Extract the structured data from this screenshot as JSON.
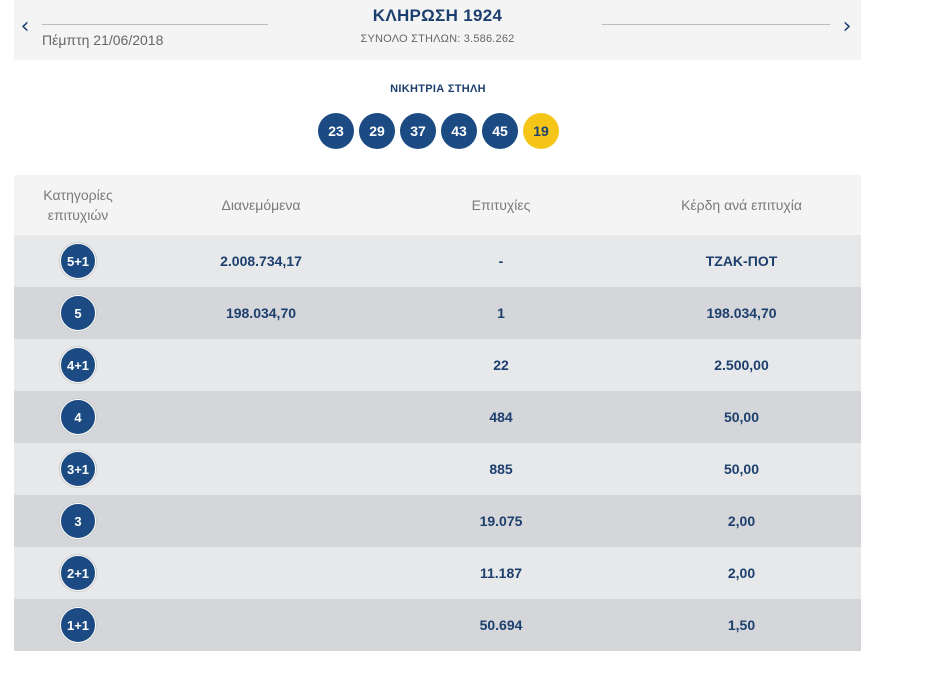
{
  "header": {
    "prev_icon": "chevron-left-icon",
    "next_icon": "chevron-right-icon",
    "date": "Πέμπτη 21/06/2018",
    "title": "ΚΛΗΡΩΣΗ 1924",
    "subtitle": "ΣΥΝΟΛΟ ΣΤΗΛΩΝ: 3.586.262"
  },
  "winning": {
    "label": "ΝΙΚΗΤΡΙΑ ΣΤΗΛΗ",
    "numbers": [
      "23",
      "29",
      "37",
      "43",
      "45"
    ],
    "joker": "19"
  },
  "table": {
    "headers": {
      "category_line1": "Κατηγορίες",
      "category_line2": "επιτυχιών",
      "distributed": "Διανεμόμενα",
      "wins": "Επιτυχίες",
      "prize": "Κέρδη ανά επιτυχία"
    },
    "rows": [
      {
        "category": "5+1",
        "distributed": "2.008.734,17",
        "wins": "-",
        "prize": "ΤΖΑΚ-ΠΟΤ"
      },
      {
        "category": "5",
        "distributed": "198.034,70",
        "wins": "1",
        "prize": "198.034,70"
      },
      {
        "category": "4+1",
        "distributed": "",
        "wins": "22",
        "prize": "2.500,00"
      },
      {
        "category": "4",
        "distributed": "",
        "wins": "484",
        "prize": "50,00"
      },
      {
        "category": "3+1",
        "distributed": "",
        "wins": "885",
        "prize": "50,00"
      },
      {
        "category": "3",
        "distributed": "",
        "wins": "19.075",
        "prize": "2,00"
      },
      {
        "category": "2+1",
        "distributed": "",
        "wins": "11.187",
        "prize": "2,00"
      },
      {
        "category": "1+1",
        "distributed": "",
        "wins": "50.694",
        "prize": "1,50"
      }
    ]
  },
  "colors": {
    "navy": "#1c3f6e",
    "ball_blue": "#1c4a82",
    "joker_yellow": "#f5c518",
    "row_light": "#e7e8ea",
    "row_dark": "#d5d6d9"
  }
}
